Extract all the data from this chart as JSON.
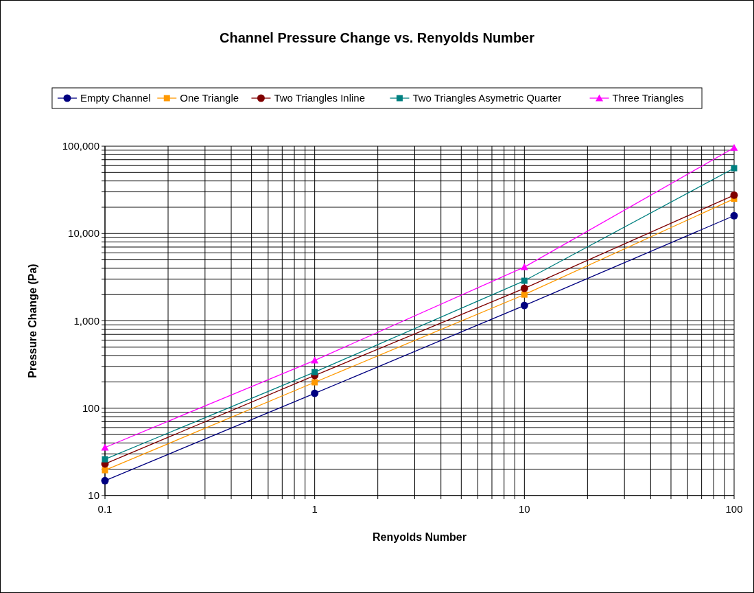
{
  "chart_data": {
    "type": "line",
    "title": "Channel Pressure Change vs. Renyolds Number",
    "xlabel": "Renyolds Number",
    "ylabel": "Pressure Change (Pa)",
    "log": "xy",
    "grid": true,
    "legend": "top",
    "x": [
      0.1,
      1,
      10,
      100
    ],
    "xlim": [
      0.1,
      100
    ],
    "ylim": [
      10,
      100000
    ],
    "xticks": [
      0.1,
      {
        "value": 0.2,
        "label": null
      },
      {
        "value": 0.3,
        "label": null
      },
      {
        "value": 0.4,
        "label": null
      },
      {
        "value": 0.5,
        "label": null
      },
      {
        "value": 0.6,
        "label": null
      },
      {
        "value": 0.7,
        "label": null
      },
      {
        "value": 0.8,
        "label": null
      },
      {
        "value": 0.9,
        "label": null
      },
      1,
      {
        "value": 2,
        "label": null
      },
      {
        "value": 3,
        "label": null
      },
      {
        "value": 4,
        "label": null
      },
      {
        "value": 5,
        "label": null
      },
      {
        "value": 6,
        "label": null
      },
      {
        "value": 7,
        "label": null
      },
      {
        "value": 8,
        "label": null
      },
      {
        "value": 9,
        "label": null
      },
      10,
      {
        "value": 20,
        "label": null
      },
      {
        "value": 30,
        "label": null
      },
      {
        "value": 40,
        "label": null
      },
      {
        "value": 50,
        "label": null
      },
      {
        "value": 60,
        "label": null
      },
      {
        "value": 70,
        "label": null
      },
      {
        "value": 80,
        "label": null
      },
      {
        "value": 90,
        "label": null
      },
      100
    ],
    "yticks": [
      10,
      {
        "value": 20,
        "label": null
      },
      {
        "value": 30,
        "label": null
      },
      {
        "value": 40,
        "label": null
      },
      {
        "value": 50,
        "label": null
      },
      {
        "value": 60,
        "label": null
      },
      {
        "value": 70,
        "label": null
      },
      {
        "value": 80,
        "label": null
      },
      {
        "value": 90,
        "label": null
      },
      100,
      {
        "value": 200,
        "label": null
      },
      {
        "value": 300,
        "label": null
      },
      {
        "value": 400,
        "label": null
      },
      {
        "value": 500,
        "label": null
      },
      {
        "value": 600,
        "label": null
      },
      {
        "value": 700,
        "label": null
      },
      {
        "value": 800,
        "label": null
      },
      {
        "value": 900,
        "label": null
      },
      {
        "value": 1000,
        "label": "1,000"
      },
      {
        "value": 2000,
        "label": null
      },
      {
        "value": 3000,
        "label": null
      },
      {
        "value": 4000,
        "label": null
      },
      {
        "value": 5000,
        "label": null
      },
      {
        "value": 6000,
        "label": null
      },
      {
        "value": 7000,
        "label": null
      },
      {
        "value": 8000,
        "label": null
      },
      {
        "value": 9000,
        "label": null
      },
      {
        "value": 10000,
        "label": "10,000"
      },
      {
        "value": 20000,
        "label": null
      },
      {
        "value": 30000,
        "label": null
      },
      {
        "value": 40000,
        "label": null
      },
      {
        "value": 50000,
        "label": null
      },
      {
        "value": 60000,
        "label": null
      },
      {
        "value": 70000,
        "label": null
      },
      {
        "value": 80000,
        "label": null
      },
      {
        "value": 90000,
        "label": null
      },
      {
        "value": 100000,
        "label": "100,000"
      }
    ],
    "series": [
      {
        "name": "Empty Channel",
        "color": "#000080",
        "marker": "circle",
        "values": [
          14.8,
          148,
          1500,
          16000
        ]
      },
      {
        "name": "One Triangle",
        "color": "#ff9900",
        "marker": "square",
        "values": [
          19.5,
          198,
          2000,
          25000
        ]
      },
      {
        "name": "Two Triangles Inline",
        "color": "#800000",
        "marker": "circle",
        "values": [
          23,
          237,
          2360,
          27500
        ]
      },
      {
        "name": "Two Triangles Asymetric Quarter",
        "color": "#008080",
        "marker": "square",
        "values": [
          26,
          259,
          2880,
          56000
        ]
      },
      {
        "name": "Three Triangles",
        "color": "#ff00ff",
        "marker": "triangle",
        "values": [
          35.5,
          353,
          4130,
          96000
        ]
      }
    ]
  }
}
